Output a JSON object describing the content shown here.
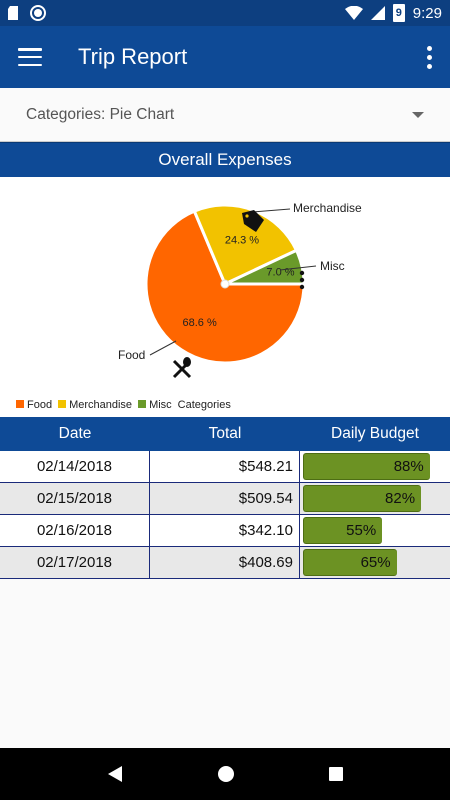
{
  "status": {
    "time": "9:29",
    "battery": "9"
  },
  "appbar": {
    "title": "Trip Report"
  },
  "selector": {
    "value": "Categories: Pie Chart"
  },
  "section": {
    "title": "Overall Expenses"
  },
  "colors": {
    "food": "#ff6600",
    "merchandise": "#f2c200",
    "misc": "#6a9a2a",
    "bar": "#6c9223",
    "header": "#0e4a96"
  },
  "chart_data": {
    "type": "pie",
    "slices": [
      {
        "name": "Food",
        "value": 68.6,
        "label": "68.6 %"
      },
      {
        "name": "Merchandise",
        "value": 24.3,
        "label": "24.3 %"
      },
      {
        "name": "Misc",
        "value": 7.0,
        "label": "7.0 %"
      }
    ],
    "legend": [
      "Food",
      "Merchandise",
      "Misc"
    ],
    "legend_title": "Categories",
    "legend_position": "bottom-left"
  },
  "table": {
    "headers": {
      "date": "Date",
      "total": "Total",
      "budget": "Daily Budget"
    },
    "rows": [
      {
        "date": "02/14/2018",
        "total": "$548.21",
        "budget": "88%",
        "pct": 88
      },
      {
        "date": "02/15/2018",
        "total": "$509.54",
        "budget": "82%",
        "pct": 82
      },
      {
        "date": "02/16/2018",
        "total": "$342.10",
        "budget": "55%",
        "pct": 55
      },
      {
        "date": "02/17/2018",
        "total": "$408.69",
        "budget": "65%",
        "pct": 65
      }
    ]
  }
}
